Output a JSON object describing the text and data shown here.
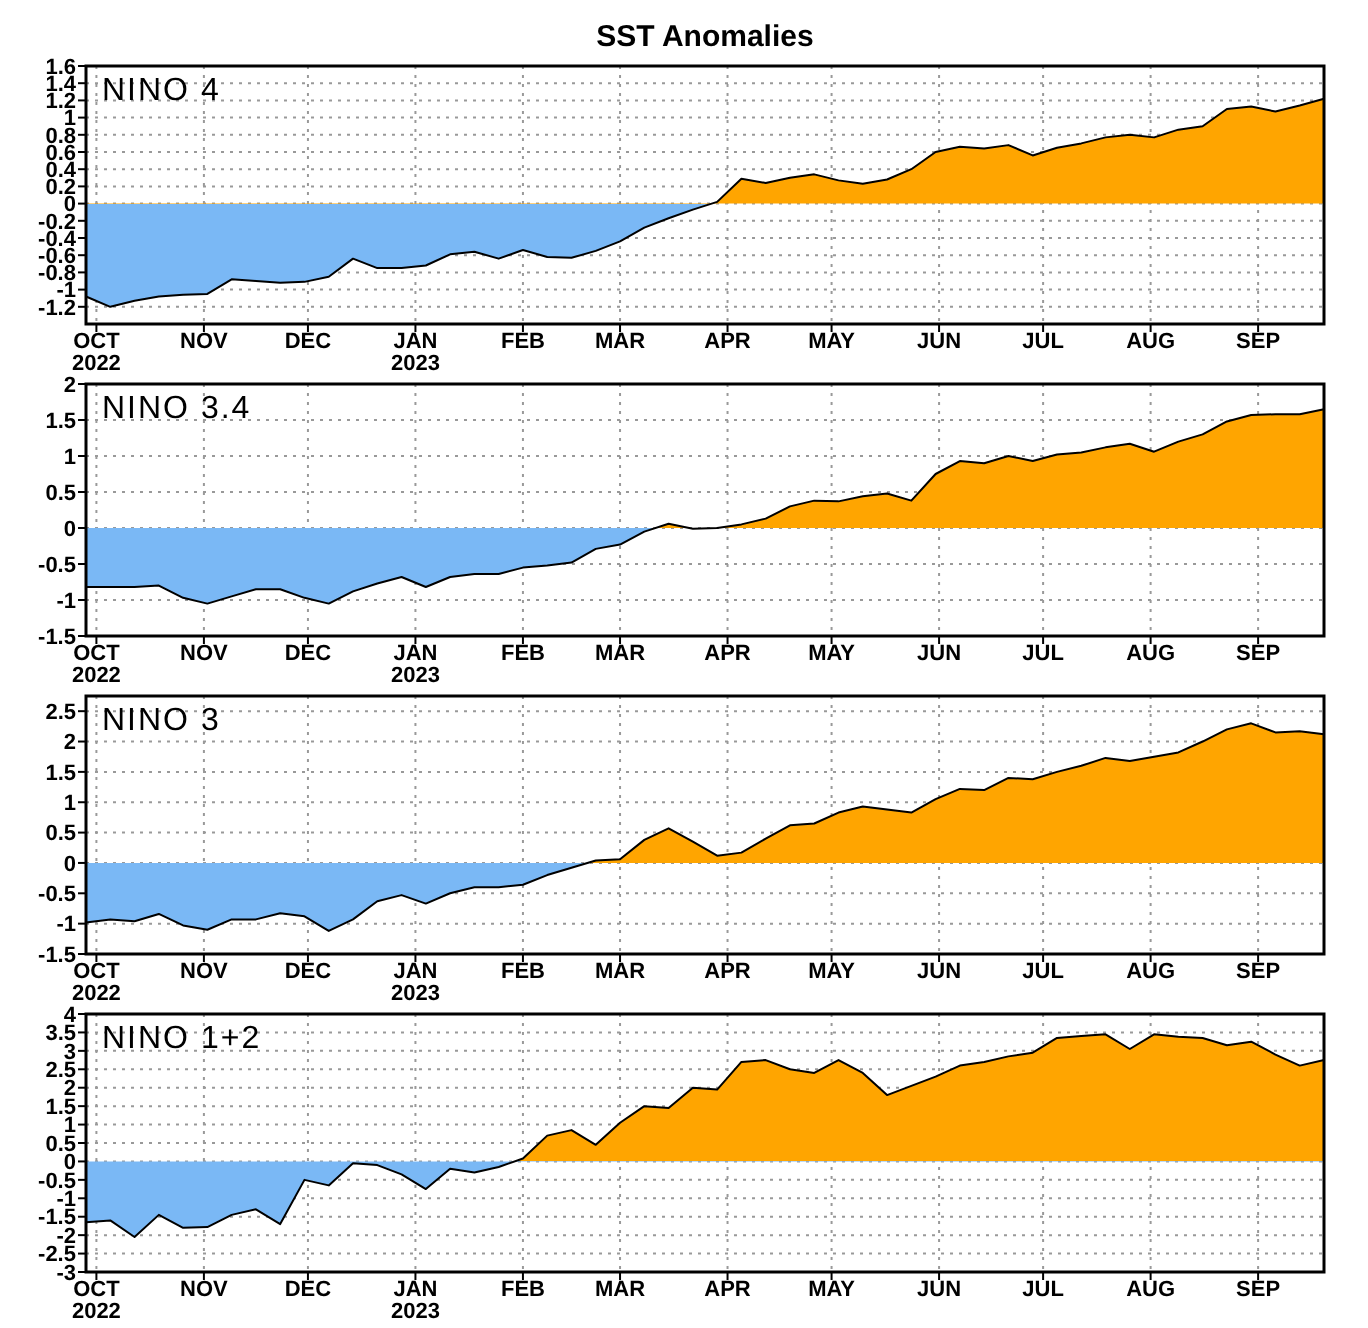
{
  "chart_data": [
    {
      "type": "area",
      "title": "NINO 4",
      "annotations": [
        "SST Anomalies"
      ],
      "grid": true,
      "colors": [
        "#ffa500",
        "#7ab8f5"
      ],
      "x": [
        "2022-09-28",
        "2022-10-05",
        "2022-10-12",
        "2022-10-19",
        "2022-10-26",
        "2022-11-02",
        "2022-11-09",
        "2022-11-16",
        "2022-11-23",
        "2022-11-30",
        "2022-12-07",
        "2022-12-14",
        "2022-12-21",
        "2022-12-28",
        "2023-01-04",
        "2023-01-11",
        "2023-01-18",
        "2023-01-25",
        "2023-02-01",
        "2023-02-08",
        "2023-02-15",
        "2023-02-22",
        "2023-03-01",
        "2023-03-08",
        "2023-03-15",
        "2023-03-22",
        "2023-03-29",
        "2023-04-05",
        "2023-04-12",
        "2023-04-19",
        "2023-04-26",
        "2023-05-03",
        "2023-05-10",
        "2023-05-17",
        "2023-05-24",
        "2023-05-31",
        "2023-06-07",
        "2023-06-14",
        "2023-06-21",
        "2023-06-28",
        "2023-07-05",
        "2023-07-12",
        "2023-07-19",
        "2023-07-26",
        "2023-08-02",
        "2023-08-09",
        "2023-08-16",
        "2023-08-23",
        "2023-08-30",
        "2023-09-06",
        "2023-09-13",
        "2023-09-20"
      ],
      "series": [
        {
          "color": "#000000",
          "values": [
            -1.08,
            -1.2,
            -1.13,
            -1.08,
            -1.06,
            -1.05,
            -0.88,
            -0.9,
            -0.92,
            -0.91,
            -0.85,
            -0.64,
            -0.75,
            -0.75,
            -0.72,
            -0.59,
            -0.56,
            -0.64,
            -0.54,
            -0.62,
            -0.63,
            -0.55,
            -0.44,
            -0.28,
            -0.17,
            -0.07,
            0.02,
            0.29,
            0.24,
            0.3,
            0.34,
            0.27,
            0.23,
            0.28,
            0.4,
            0.6,
            0.66,
            0.64,
            0.68,
            0.56,
            0.65,
            0.7,
            0.77,
            0.8,
            0.77,
            0.86,
            0.9,
            1.1,
            1.13,
            1.07,
            1.14,
            1.22
          ]
        }
      ],
      "xlim": [
        "2022-09-28",
        "2023-09-20"
      ],
      "xticks": [
        {
          "value": "2022-10-01",
          "label": "OCT 2022"
        },
        {
          "value": "2022-11-01",
          "label": "NOV"
        },
        {
          "value": "2022-12-01",
          "label": "DEC"
        },
        {
          "value": "2023-01-01",
          "label": "JAN 2023"
        },
        {
          "value": "2023-02-01",
          "label": "FEB"
        },
        {
          "value": "2023-03-01",
          "label": "MAR"
        },
        {
          "value": "2023-04-01",
          "label": "APR"
        },
        {
          "value": "2023-05-01",
          "label": "MAY"
        },
        {
          "value": "2023-06-01",
          "label": "JUN"
        },
        {
          "value": "2023-07-01",
          "label": "JUL"
        },
        {
          "value": "2023-08-01",
          "label": "AUG"
        },
        {
          "value": "2023-09-01",
          "label": "SEP"
        }
      ],
      "ylim": [
        -1.4,
        1.6
      ],
      "yticks": [
        -1.2,
        -1,
        -0.8,
        -0.6,
        -0.4,
        -0.2,
        0,
        0.2,
        0.4,
        0.6,
        0.8,
        1,
        1.2,
        1.4,
        1.6
      ]
    },
    {
      "type": "area",
      "title": "NINO 3.4",
      "grid": true,
      "colors": [
        "#ffa500",
        "#7ab8f5"
      ],
      "x": [
        "2022-09-28",
        "2022-10-05",
        "2022-10-12",
        "2022-10-19",
        "2022-10-26",
        "2022-11-02",
        "2022-11-09",
        "2022-11-16",
        "2022-11-23",
        "2022-11-30",
        "2022-12-07",
        "2022-12-14",
        "2022-12-21",
        "2022-12-28",
        "2023-01-04",
        "2023-01-11",
        "2023-01-18",
        "2023-01-25",
        "2023-02-01",
        "2023-02-08",
        "2023-02-15",
        "2023-02-22",
        "2023-03-01",
        "2023-03-08",
        "2023-03-15",
        "2023-03-22",
        "2023-03-29",
        "2023-04-05",
        "2023-04-12",
        "2023-04-19",
        "2023-04-26",
        "2023-05-03",
        "2023-05-10",
        "2023-05-17",
        "2023-05-24",
        "2023-05-31",
        "2023-06-07",
        "2023-06-14",
        "2023-06-21",
        "2023-06-28",
        "2023-07-05",
        "2023-07-12",
        "2023-07-19",
        "2023-07-26",
        "2023-08-02",
        "2023-08-09",
        "2023-08-16",
        "2023-08-23",
        "2023-08-30",
        "2023-09-06",
        "2023-09-13",
        "2023-09-20"
      ],
      "series": [
        {
          "color": "#000000",
          "values": [
            -0.82,
            -0.82,
            -0.82,
            -0.8,
            -0.97,
            -1.05,
            -0.95,
            -0.85,
            -0.85,
            -0.97,
            -1.05,
            -0.88,
            -0.77,
            -0.68,
            -0.82,
            -0.68,
            -0.64,
            -0.64,
            -0.55,
            -0.52,
            -0.48,
            -0.29,
            -0.23,
            -0.05,
            0.06,
            -0.01,
            0.0,
            0.05,
            0.13,
            0.3,
            0.38,
            0.37,
            0.44,
            0.48,
            0.38,
            0.75,
            0.93,
            0.9,
            1.0,
            0.93,
            1.02,
            1.05,
            1.12,
            1.17,
            1.06,
            1.2,
            1.3,
            1.48,
            1.57,
            1.58,
            1.58,
            1.65
          ]
        }
      ],
      "xlim": [
        "2022-09-28",
        "2023-09-20"
      ],
      "xticks": [
        {
          "value": "2022-10-01",
          "label": "OCT 2022"
        },
        {
          "value": "2022-11-01",
          "label": "NOV"
        },
        {
          "value": "2022-12-01",
          "label": "DEC"
        },
        {
          "value": "2023-01-01",
          "label": "JAN 2023"
        },
        {
          "value": "2023-02-01",
          "label": "FEB"
        },
        {
          "value": "2023-03-01",
          "label": "MAR"
        },
        {
          "value": "2023-04-01",
          "label": "APR"
        },
        {
          "value": "2023-05-01",
          "label": "MAY"
        },
        {
          "value": "2023-06-01",
          "label": "JUN"
        },
        {
          "value": "2023-07-01",
          "label": "JUL"
        },
        {
          "value": "2023-08-01",
          "label": "AUG"
        },
        {
          "value": "2023-09-01",
          "label": "SEP"
        }
      ],
      "ylim": [
        -1.5,
        2
      ],
      "yticks": [
        -1.5,
        -1,
        -0.5,
        0,
        0.5,
        1,
        1.5,
        2
      ]
    },
    {
      "type": "area",
      "title": "NINO 3",
      "grid": true,
      "colors": [
        "#ffa500",
        "#7ab8f5"
      ],
      "x": [
        "2022-09-28",
        "2022-10-05",
        "2022-10-12",
        "2022-10-19",
        "2022-10-26",
        "2022-11-02",
        "2022-11-09",
        "2022-11-16",
        "2022-11-23",
        "2022-11-30",
        "2022-12-07",
        "2022-12-14",
        "2022-12-21",
        "2022-12-28",
        "2023-01-04",
        "2023-01-11",
        "2023-01-18",
        "2023-01-25",
        "2023-02-01",
        "2023-02-08",
        "2023-02-15",
        "2023-02-22",
        "2023-03-01",
        "2023-03-08",
        "2023-03-15",
        "2023-03-22",
        "2023-03-29",
        "2023-04-05",
        "2023-04-12",
        "2023-04-19",
        "2023-04-26",
        "2023-05-03",
        "2023-05-10",
        "2023-05-17",
        "2023-05-24",
        "2023-05-31",
        "2023-06-07",
        "2023-06-14",
        "2023-06-21",
        "2023-06-28",
        "2023-07-05",
        "2023-07-12",
        "2023-07-19",
        "2023-07-26",
        "2023-08-02",
        "2023-08-09",
        "2023-08-16",
        "2023-08-23",
        "2023-08-30",
        "2023-09-06",
        "2023-09-13",
        "2023-09-20"
      ],
      "series": [
        {
          "color": "#000000",
          "values": [
            -0.98,
            -0.93,
            -0.96,
            -0.84,
            -1.03,
            -1.1,
            -0.93,
            -0.93,
            -0.83,
            -0.88,
            -1.12,
            -0.93,
            -0.63,
            -0.53,
            -0.67,
            -0.5,
            -0.4,
            -0.4,
            -0.36,
            -0.2,
            -0.08,
            0.04,
            0.06,
            0.38,
            0.57,
            0.35,
            0.12,
            0.17,
            0.4,
            0.62,
            0.65,
            0.83,
            0.93,
            0.88,
            0.83,
            1.05,
            1.22,
            1.2,
            1.4,
            1.38,
            1.5,
            1.6,
            1.73,
            1.68,
            1.75,
            1.82,
            2.0,
            2.2,
            2.3,
            2.15,
            2.17,
            2.12
          ]
        }
      ],
      "xlim": [
        "2022-09-28",
        "2023-09-20"
      ],
      "xticks": [
        {
          "value": "2022-10-01",
          "label": "OCT 2022"
        },
        {
          "value": "2022-11-01",
          "label": "NOV"
        },
        {
          "value": "2022-12-01",
          "label": "DEC"
        },
        {
          "value": "2023-01-01",
          "label": "JAN 2023"
        },
        {
          "value": "2023-02-01",
          "label": "FEB"
        },
        {
          "value": "2023-03-01",
          "label": "MAR"
        },
        {
          "value": "2023-04-01",
          "label": "APR"
        },
        {
          "value": "2023-05-01",
          "label": "MAY"
        },
        {
          "value": "2023-06-01",
          "label": "JUN"
        },
        {
          "value": "2023-07-01",
          "label": "JUL"
        },
        {
          "value": "2023-08-01",
          "label": "AUG"
        },
        {
          "value": "2023-09-01",
          "label": "SEP"
        }
      ],
      "ylim": [
        -1.5,
        2.75
      ],
      "yticks": [
        -1.5,
        -1,
        -0.5,
        0,
        0.5,
        1,
        1.5,
        2,
        2.5
      ]
    },
    {
      "type": "area",
      "title": "NINO 1+2",
      "grid": true,
      "colors": [
        "#ffa500",
        "#7ab8f5"
      ],
      "x": [
        "2022-09-28",
        "2022-10-05",
        "2022-10-12",
        "2022-10-19",
        "2022-10-26",
        "2022-11-02",
        "2022-11-09",
        "2022-11-16",
        "2022-11-23",
        "2022-11-30",
        "2022-12-07",
        "2022-12-14",
        "2022-12-21",
        "2022-12-28",
        "2023-01-04",
        "2023-01-11",
        "2023-01-18",
        "2023-01-25",
        "2023-02-01",
        "2023-02-08",
        "2023-02-15",
        "2023-02-22",
        "2023-03-01",
        "2023-03-08",
        "2023-03-15",
        "2023-03-22",
        "2023-03-29",
        "2023-04-05",
        "2023-04-12",
        "2023-04-19",
        "2023-04-26",
        "2023-05-03",
        "2023-05-10",
        "2023-05-17",
        "2023-05-24",
        "2023-05-31",
        "2023-06-07",
        "2023-06-14",
        "2023-06-21",
        "2023-06-28",
        "2023-07-05",
        "2023-07-12",
        "2023-07-19",
        "2023-07-26",
        "2023-08-02",
        "2023-08-09",
        "2023-08-16",
        "2023-08-23",
        "2023-08-30",
        "2023-09-06",
        "2023-09-13",
        "2023-09-20"
      ],
      "series": [
        {
          "color": "#000000",
          "values": [
            -1.65,
            -1.6,
            -2.05,
            -1.45,
            -1.8,
            -1.78,
            -1.45,
            -1.3,
            -1.7,
            -0.5,
            -0.65,
            -0.05,
            -0.1,
            -0.35,
            -0.75,
            -0.2,
            -0.3,
            -0.15,
            0.08,
            0.7,
            0.85,
            0.45,
            1.05,
            1.5,
            1.45,
            2.0,
            1.95,
            2.7,
            2.75,
            2.5,
            2.4,
            2.75,
            2.4,
            1.8,
            2.05,
            2.3,
            2.6,
            2.7,
            2.85,
            2.95,
            3.35,
            3.4,
            3.45,
            3.05,
            3.45,
            3.38,
            3.35,
            3.15,
            3.25,
            2.9,
            2.6,
            2.75
          ]
        }
      ],
      "xlim": [
        "2022-09-28",
        "2023-09-20"
      ],
      "xticks": [
        {
          "value": "2022-10-01",
          "label": "OCT 2022"
        },
        {
          "value": "2022-11-01",
          "label": "NOV"
        },
        {
          "value": "2022-12-01",
          "label": "DEC"
        },
        {
          "value": "2023-01-01",
          "label": "JAN 2023"
        },
        {
          "value": "2023-02-01",
          "label": "FEB"
        },
        {
          "value": "2023-03-01",
          "label": "MAR"
        },
        {
          "value": "2023-04-01",
          "label": "APR"
        },
        {
          "value": "2023-05-01",
          "label": "MAY"
        },
        {
          "value": "2023-06-01",
          "label": "JUN"
        },
        {
          "value": "2023-07-01",
          "label": "JUL"
        },
        {
          "value": "2023-08-01",
          "label": "AUG"
        },
        {
          "value": "2023-09-01",
          "label": "SEP"
        }
      ],
      "ylim": [
        -3,
        4
      ],
      "yticks": [
        -3,
        -2.5,
        -2,
        -1.5,
        -1,
        -0.5,
        0,
        0.5,
        1,
        1.5,
        2,
        2.5,
        3,
        3.5,
        4
      ]
    }
  ]
}
